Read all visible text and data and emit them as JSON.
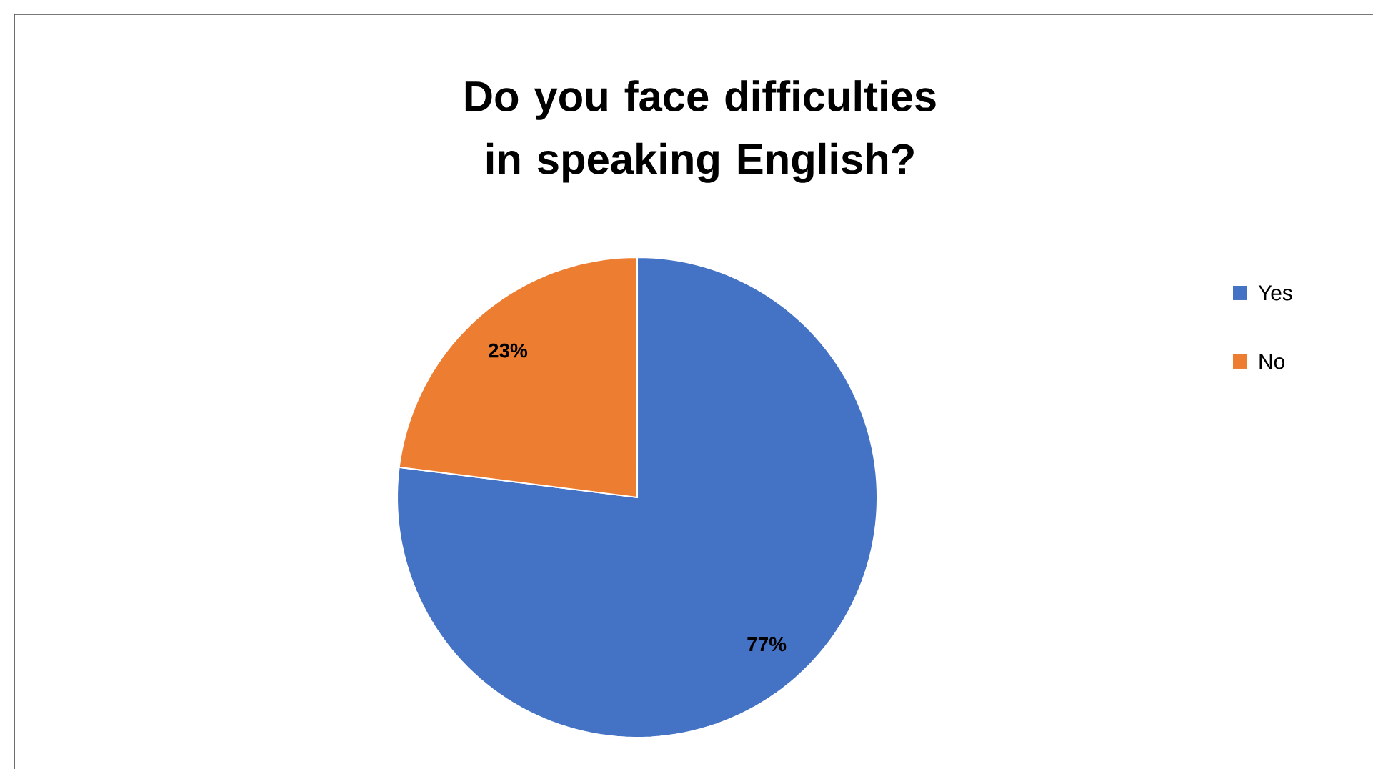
{
  "chart_data": {
    "type": "pie",
    "title": "Do you face difficulties in speaking English?",
    "categories": [
      "Yes",
      "No"
    ],
    "values": [
      77,
      23
    ],
    "colors": [
      "#4472c4",
      "#ed7d31"
    ],
    "value_labels": [
      "77%",
      "23%"
    ],
    "legend": "right"
  }
}
